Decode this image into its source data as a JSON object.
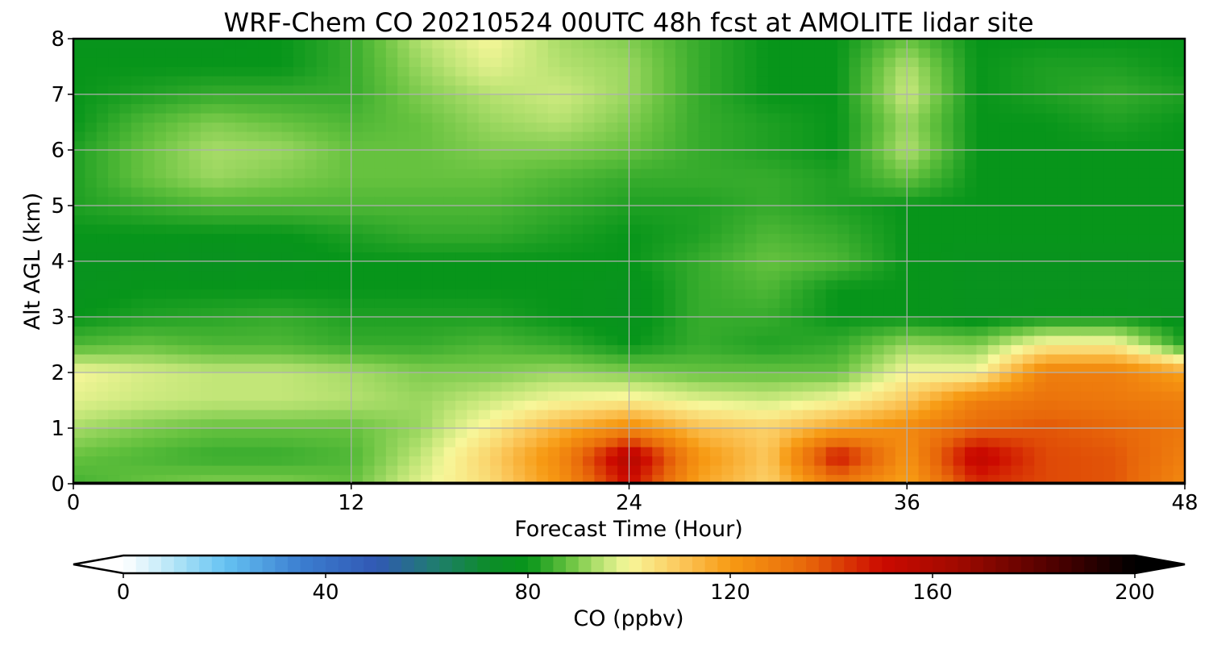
{
  "chart_data": {
    "type": "heatmap",
    "title": "WRF-Chem CO  20210524 00UTC 48h fcst at AMOLITE lidar site",
    "xlabel": "Forecast Time (Hour)",
    "ylabel": "Alt AGL (km)",
    "xlim": [
      0,
      48
    ],
    "ylim": [
      0,
      8
    ],
    "x_ticks": [
      0,
      12,
      24,
      36,
      48
    ],
    "y_ticks": [
      0,
      1,
      2,
      3,
      4,
      5,
      6,
      7,
      8
    ],
    "grid": true,
    "x_hours": [
      0,
      3,
      6,
      9,
      12,
      15,
      18,
      21,
      24,
      27,
      30,
      33,
      36,
      39,
      42,
      45,
      48
    ],
    "altitudes_km": [
      0,
      0.5,
      1,
      1.5,
      2,
      2.5,
      3,
      3.5,
      4,
      4.5,
      5,
      5.5,
      6,
      6.5,
      7,
      7.5,
      8
    ],
    "values_ppbv": [
      [
        85,
        88,
        90,
        90,
        88,
        98,
        106,
        122,
        150,
        118,
        108,
        130,
        118,
        145,
        140,
        138,
        125
      ],
      [
        88,
        86,
        84,
        84,
        86,
        95,
        108,
        125,
        160,
        122,
        110,
        150,
        122,
        155,
        140,
        138,
        128
      ],
      [
        93,
        90,
        88,
        88,
        88,
        92,
        102,
        115,
        125,
        112,
        108,
        118,
        125,
        135,
        138,
        135,
        130
      ],
      [
        98,
        96,
        95,
        95,
        94,
        92,
        96,
        100,
        102,
        98,
        96,
        100,
        110,
        128,
        132,
        130,
        128
      ],
      [
        100,
        97,
        95,
        95,
        93,
        90,
        90,
        92,
        90,
        88,
        88,
        88,
        100,
        100,
        128,
        128,
        118
      ],
      [
        86,
        88,
        86,
        86,
        84,
        84,
        86,
        84,
        80,
        84,
        82,
        84,
        92,
        90,
        102,
        102,
        82
      ],
      [
        80,
        82,
        83,
        84,
        82,
        82,
        82,
        80,
        78,
        84,
        84,
        80,
        80,
        78,
        80,
        80,
        78
      ],
      [
        78,
        80,
        80,
        80,
        80,
        80,
        80,
        80,
        78,
        84,
        86,
        80,
        80,
        78,
        78,
        78,
        78
      ],
      [
        78,
        78,
        77,
        78,
        80,
        80,
        80,
        80,
        80,
        84,
        88,
        86,
        80,
        78,
        78,
        78,
        78
      ],
      [
        80,
        80,
        80,
        80,
        82,
        84,
        84,
        82,
        80,
        82,
        86,
        84,
        80,
        80,
        80,
        80,
        80
      ],
      [
        82,
        84,
        86,
        86,
        86,
        86,
        86,
        84,
        82,
        82,
        84,
        82,
        80,
        80,
        80,
        80,
        80
      ],
      [
        82,
        88,
        92,
        90,
        88,
        88,
        88,
        86,
        84,
        84,
        84,
        82,
        88,
        80,
        80,
        80,
        80
      ],
      [
        82,
        88,
        93,
        92,
        88,
        88,
        90,
        90,
        88,
        84,
        82,
        80,
        94,
        80,
        80,
        80,
        80
      ],
      [
        80,
        86,
        90,
        88,
        86,
        88,
        92,
        94,
        90,
        84,
        82,
        80,
        92,
        80,
        80,
        82,
        80
      ],
      [
        80,
        82,
        84,
        84,
        84,
        90,
        94,
        96,
        92,
        84,
        80,
        80,
        96,
        80,
        82,
        84,
        82
      ],
      [
        80,
        80,
        80,
        80,
        84,
        92,
        98,
        94,
        92,
        84,
        80,
        80,
        94,
        80,
        82,
        82,
        80
      ],
      [
        79,
        79,
        79,
        80,
        84,
        94,
        100,
        93,
        90,
        84,
        80,
        80,
        88,
        80,
        80,
        80,
        80
      ]
    ]
  },
  "colorbar": {
    "label": "CO  (ppbv)",
    "min": 0,
    "max": 200,
    "ticks": [
      0,
      40,
      80,
      120,
      160,
      200
    ],
    "extend": "both",
    "stops": [
      {
        "v": 0,
        "c": "#ffffff"
      },
      {
        "v": 10,
        "c": "#b3e5f7"
      },
      {
        "v": 20,
        "c": "#66c3f2"
      },
      {
        "v": 35,
        "c": "#3b7ed0"
      },
      {
        "v": 50,
        "c": "#3158b4"
      },
      {
        "v": 62,
        "c": "#1f7d6e"
      },
      {
        "v": 72,
        "c": "#0d8c2a"
      },
      {
        "v": 80,
        "c": "#07951a"
      },
      {
        "v": 88,
        "c": "#66c23f"
      },
      {
        "v": 95,
        "c": "#c2e678"
      },
      {
        "v": 100,
        "c": "#f7f79a"
      },
      {
        "v": 110,
        "c": "#fbc85c"
      },
      {
        "v": 120,
        "c": "#f79a13"
      },
      {
        "v": 135,
        "c": "#e8680a"
      },
      {
        "v": 150,
        "c": "#cc0a00"
      },
      {
        "v": 165,
        "c": "#a00a00"
      },
      {
        "v": 185,
        "c": "#4a0000"
      },
      {
        "v": 200,
        "c": "#000000"
      }
    ]
  }
}
